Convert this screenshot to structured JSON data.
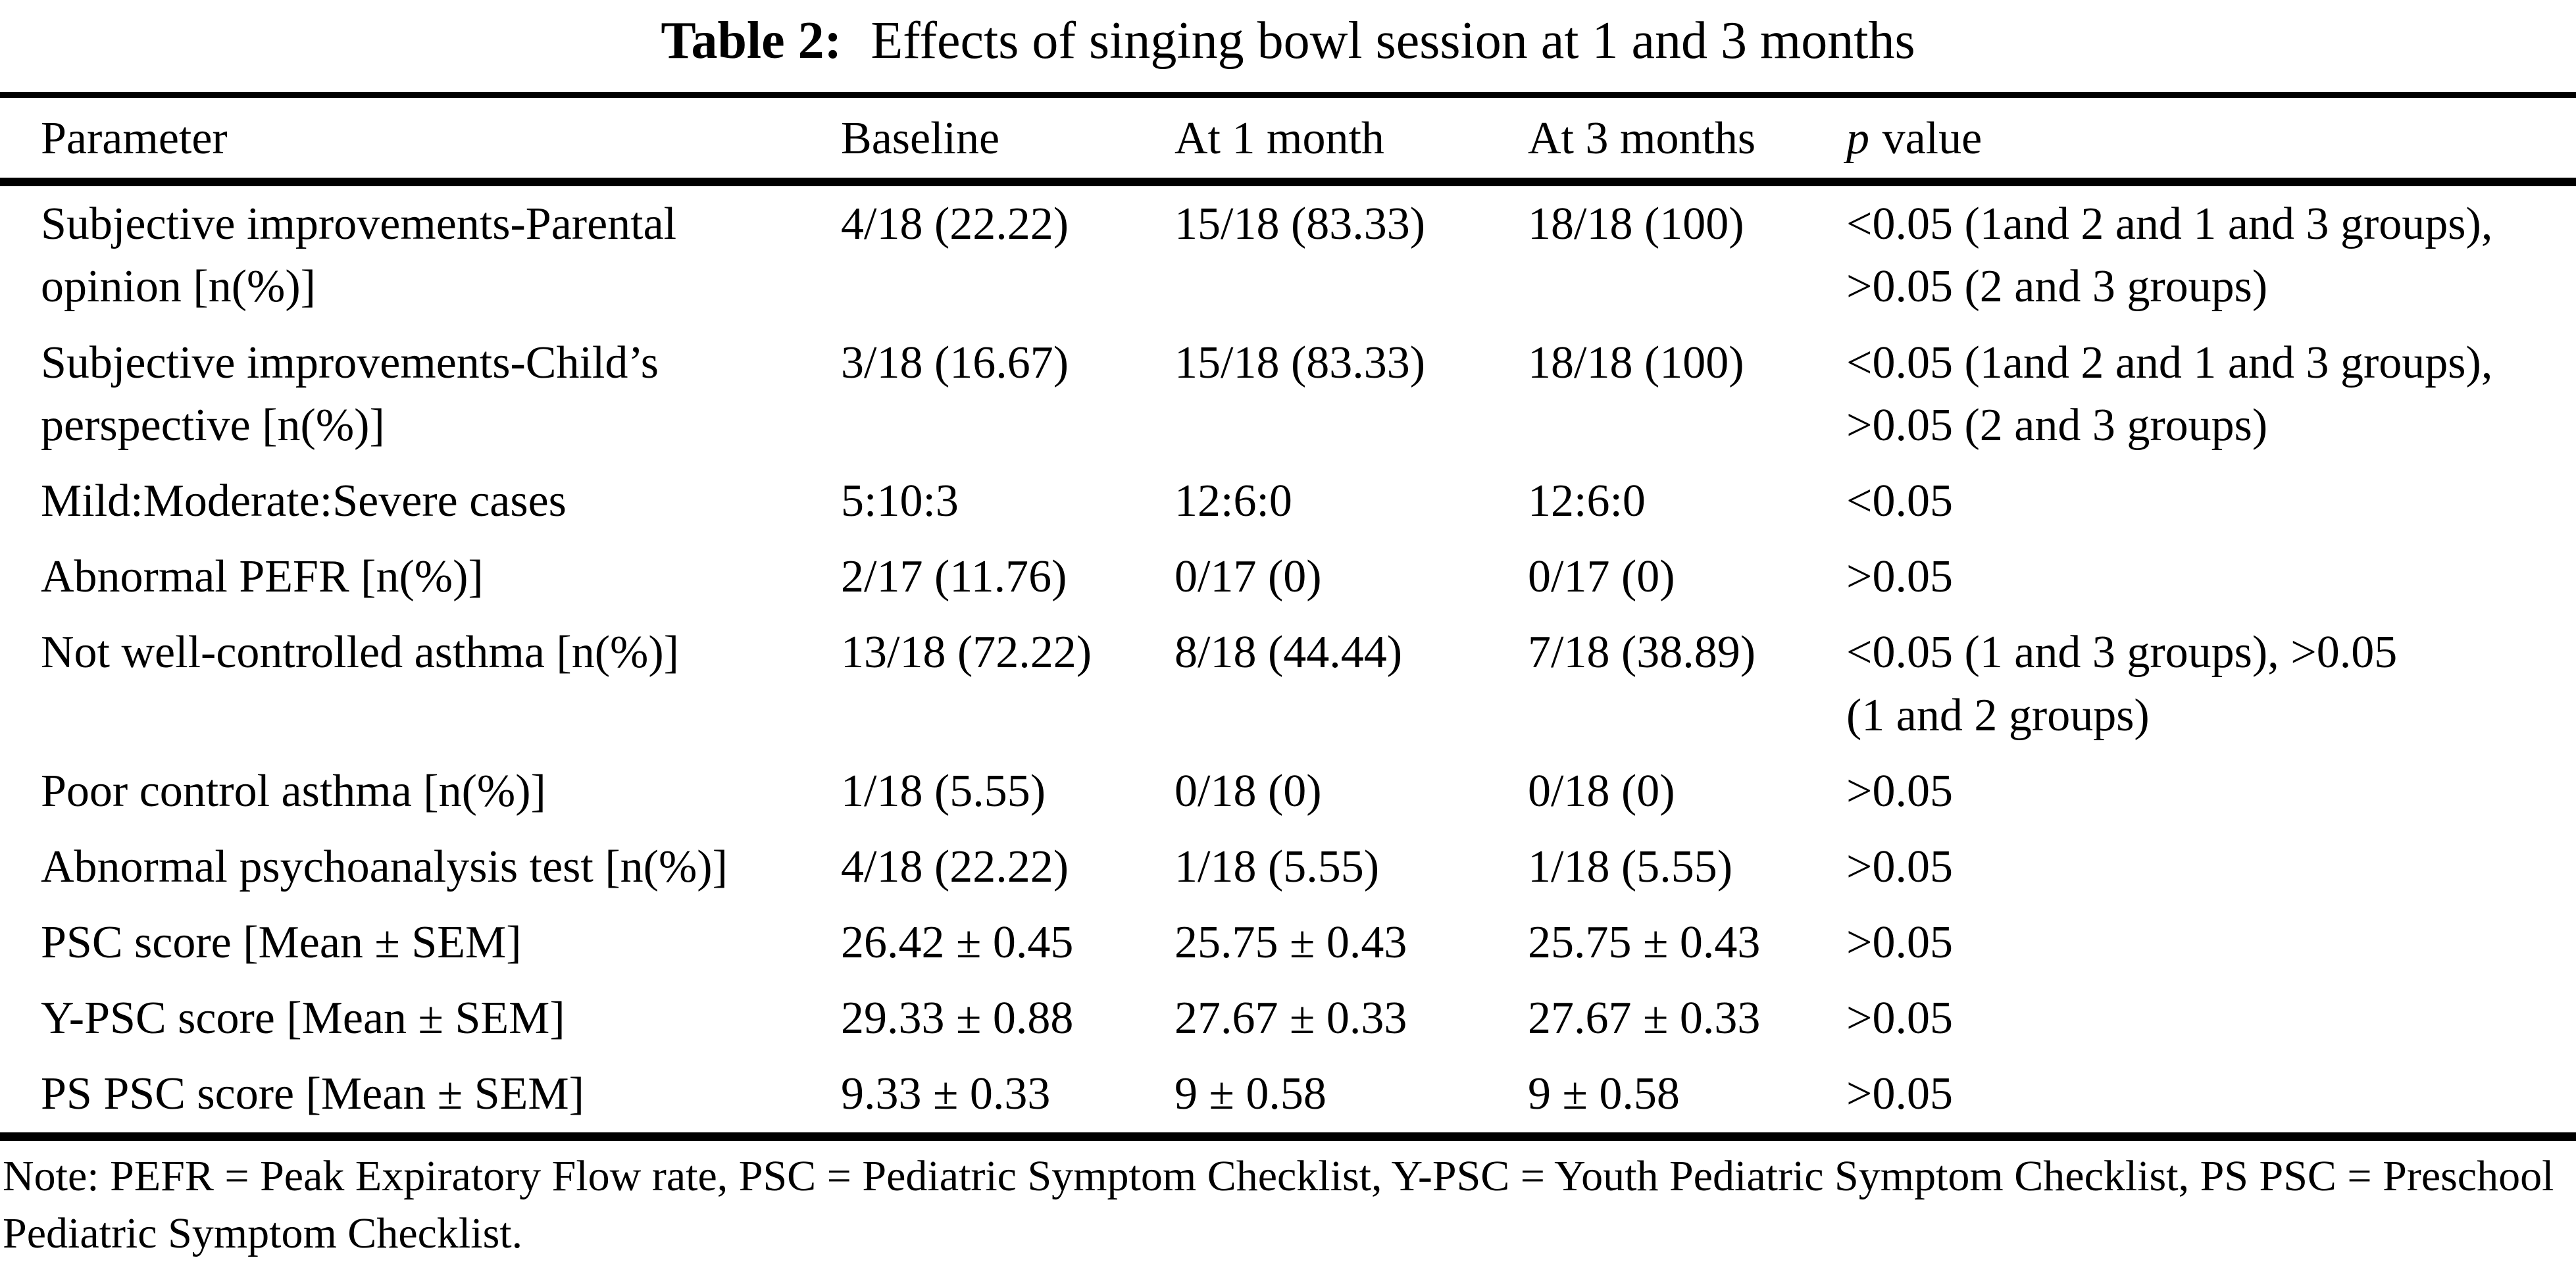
{
  "colors": {
    "background": "#ffffff",
    "text": "#000000",
    "rules": "#000000"
  },
  "title": {
    "label": "Table 2:",
    "text": "Effects of singing bowl session at 1 and 3 months"
  },
  "table": {
    "header": {
      "parameter": "Parameter",
      "baseline": "Baseline",
      "month1": "At 1 month",
      "month3": "At 3 months",
      "p_italic": "p",
      "p_rest": "value"
    },
    "rows": [
      {
        "parameter": [
          "Subjective improvements-Parental",
          "opinion [n(%)]"
        ],
        "baseline": "4/18 (22.22)",
        "month1": "15/18 (83.33)",
        "month3": "18/18 (100)",
        "p_value": [
          "<0.05 (1and 2 and 1 and 3 groups),",
          ">0.05 (2 and 3 groups)"
        ]
      },
      {
        "parameter": [
          "Subjective improvements-Child’s",
          "perspective [n(%)]"
        ],
        "baseline": "3/18 (16.67)",
        "month1": "15/18 (83.33)",
        "month3": "18/18 (100)",
        "p_value": [
          "<0.05 (1and 2 and 1 and 3 groups),",
          ">0.05 (2 and 3 groups)"
        ]
      },
      {
        "parameter": [
          "Mild:Moderate:Severe cases"
        ],
        "baseline": "5:10:3",
        "month1": "12:6:0",
        "month3": "12:6:0",
        "p_value": [
          "<0.05"
        ]
      },
      {
        "parameter": [
          "Abnormal PEFR [n(%)]"
        ],
        "baseline": "2/17 (11.76)",
        "month1": "0/17 (0)",
        "month3": "0/17 (0)",
        "p_value": [
          ">0.05"
        ]
      },
      {
        "parameter": [
          "Not well-controlled asthma [n(%)]"
        ],
        "baseline": "13/18 (72.22)",
        "month1": "8/18 (44.44)",
        "month3": "7/18 (38.89)",
        "p_value": [
          "<0.05 (1 and 3 groups), >0.05",
          "(1 and 2 groups)"
        ]
      },
      {
        "parameter": [
          "Poor control asthma [n(%)]"
        ],
        "baseline": "1/18 (5.55)",
        "month1": "0/18 (0)",
        "month3": "0/18 (0)",
        "p_value": [
          ">0.05"
        ]
      },
      {
        "parameter": [
          "Abnormal psychoanalysis test [n(%)]"
        ],
        "baseline": "4/18 (22.22)",
        "month1": "1/18 (5.55)",
        "month3": "1/18 (5.55)",
        "p_value": [
          ">0.05"
        ]
      },
      {
        "parameter": [
          "PSC score [Mean ± SEM]"
        ],
        "baseline": "26.42 ± 0.45",
        "month1": "25.75 ± 0.43",
        "month3": "25.75 ± 0.43",
        "p_value": [
          ">0.05"
        ]
      },
      {
        "parameter": [
          "Y-PSC score [Mean ± SEM]"
        ],
        "baseline": "29.33 ± 0.88",
        "month1": "27.67 ± 0.33",
        "month3": "27.67 ± 0.33",
        "p_value": [
          ">0.05"
        ]
      },
      {
        "parameter": [
          "PS PSC score [Mean ± SEM]"
        ],
        "baseline": "9.33 ± 0.33",
        "month1": "9 ± 0.58",
        "month3": "9 ± 0.58",
        "p_value": [
          ">0.05"
        ]
      }
    ]
  },
  "note": "Note: PEFR = Peak Expiratory Flow rate, PSC = Pediatric Symptom Checklist, Y-PSC = Youth Pediatric Symptom Checklist, PS PSC = Preschool Pediatric Symptom Checklist."
}
